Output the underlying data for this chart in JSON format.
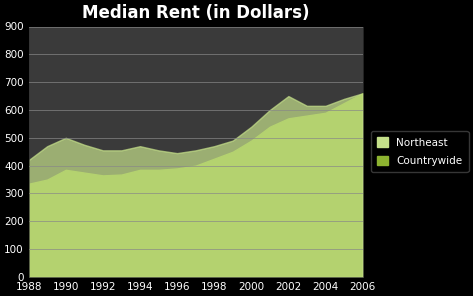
{
  "title": "Median Rent (in Dollars)",
  "years": [
    1988,
    1989,
    1990,
    1991,
    1992,
    1993,
    1994,
    1995,
    1996,
    1997,
    1998,
    1999,
    2000,
    2001,
    2002,
    2003,
    2004,
    2005,
    2006
  ],
  "northeast": [
    420,
    470,
    500,
    475,
    455,
    455,
    470,
    455,
    445,
    455,
    470,
    490,
    540,
    600,
    650,
    615,
    615,
    640,
    660
  ],
  "countrywide": [
    335,
    350,
    385,
    375,
    365,
    368,
    385,
    385,
    390,
    400,
    425,
    450,
    490,
    540,
    570,
    580,
    590,
    625,
    660
  ],
  "northeast_color": "#c5e08a",
  "countrywide_color": "#8db330",
  "background_color": "#000000",
  "plot_bg_color": "#3a3a3a",
  "text_color": "#ffffff",
  "grid_color": "#888888",
  "ylim": [
    0,
    900
  ],
  "yticks": [
    0,
    100,
    200,
    300,
    400,
    500,
    600,
    700,
    800,
    900
  ],
  "xticks": [
    1988,
    1990,
    1992,
    1994,
    1996,
    1998,
    2000,
    2002,
    2004,
    2006
  ],
  "legend_northeast": "Northeast",
  "legend_countrywide": "Countrywide"
}
